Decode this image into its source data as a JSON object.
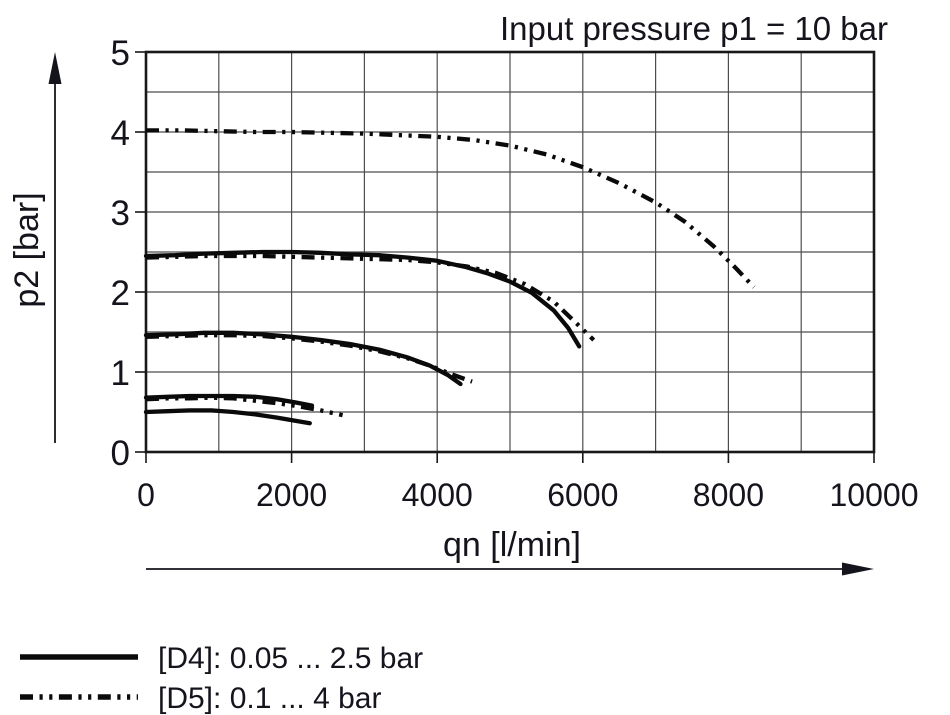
{
  "colors": {
    "background": "#ffffff",
    "ink": "#14141c",
    "curve": "#0a0a0a",
    "grid_line": "#4d4d4d",
    "frame": "#181818"
  },
  "chart_data": {
    "type": "line",
    "title": "Input pressure p1 = 10 bar",
    "xlabel": "qn [l/min]",
    "ylabel": "p2 [bar]",
    "xlim": [
      0,
      10000
    ],
    "ylim": [
      0,
      5
    ],
    "x_major_ticks": [
      0,
      2000,
      4000,
      6000,
      8000,
      10000
    ],
    "y_major_ticks": [
      0,
      1,
      2,
      3,
      4,
      5
    ],
    "x_grid_step": 1000,
    "y_grid_step": 0.5,
    "grid": true,
    "legend_position": "below-chart-left",
    "legend": [
      {
        "id": "d4",
        "label": "[D4]: 0.05 ... 2.5 bar",
        "style": "solid"
      },
      {
        "id": "d5",
        "label": "[D5]: 0.1 ... 4 bar",
        "style": "dash-dot-dot"
      }
    ],
    "series": [
      {
        "id": "d5-4.0-bar",
        "variant": "[D5]",
        "style": "dash-dot-dot",
        "set_pressure_bar": 4.0,
        "points": [
          [
            0,
            4.02
          ],
          [
            500,
            4.02
          ],
          [
            1000,
            4.01
          ],
          [
            1500,
            4.0
          ],
          [
            2000,
            4.0
          ],
          [
            2500,
            3.99
          ],
          [
            3000,
            3.98
          ],
          [
            3500,
            3.96
          ],
          [
            4000,
            3.94
          ],
          [
            4500,
            3.9
          ],
          [
            5000,
            3.83
          ],
          [
            5500,
            3.72
          ],
          [
            6000,
            3.56
          ],
          [
            6500,
            3.36
          ],
          [
            7000,
            3.12
          ],
          [
            7400,
            2.88
          ],
          [
            7800,
            2.57
          ],
          [
            8100,
            2.3
          ],
          [
            8350,
            2.06
          ]
        ]
      },
      {
        "id": "d4-2.5-bar",
        "variant": "[D4]",
        "style": "solid",
        "set_pressure_bar": 2.5,
        "points": [
          [
            0,
            2.45
          ],
          [
            400,
            2.46
          ],
          [
            800,
            2.48
          ],
          [
            1200,
            2.49
          ],
          [
            1600,
            2.5
          ],
          [
            2000,
            2.5
          ],
          [
            2400,
            2.49
          ],
          [
            2800,
            2.47
          ],
          [
            3200,
            2.46
          ],
          [
            3600,
            2.43
          ],
          [
            4000,
            2.39
          ],
          [
            4400,
            2.31
          ],
          [
            4700,
            2.23
          ],
          [
            5000,
            2.13
          ],
          [
            5300,
            1.99
          ],
          [
            5600,
            1.77
          ],
          [
            5800,
            1.55
          ],
          [
            5950,
            1.32
          ]
        ]
      },
      {
        "id": "d5-2.45-bar",
        "variant": "[D5]",
        "style": "dash-dot-dot",
        "set_pressure_bar": 2.45,
        "points": [
          [
            0,
            2.43
          ],
          [
            400,
            2.44
          ],
          [
            800,
            2.45
          ],
          [
            1200,
            2.45
          ],
          [
            1600,
            2.45
          ],
          [
            2000,
            2.44
          ],
          [
            2400,
            2.43
          ],
          [
            2800,
            2.42
          ],
          [
            3200,
            2.41
          ],
          [
            3600,
            2.4
          ],
          [
            4000,
            2.37
          ],
          [
            4400,
            2.32
          ],
          [
            4800,
            2.24
          ],
          [
            5200,
            2.1
          ],
          [
            5600,
            1.88
          ],
          [
            5900,
            1.62
          ],
          [
            6150,
            1.4
          ]
        ]
      },
      {
        "id": "d4-1.45-bar",
        "variant": "[D4]",
        "style": "solid",
        "set_pressure_bar": 1.45,
        "points": [
          [
            0,
            1.46
          ],
          [
            400,
            1.47
          ],
          [
            800,
            1.49
          ],
          [
            1200,
            1.49
          ],
          [
            1600,
            1.47
          ],
          [
            2000,
            1.44
          ],
          [
            2400,
            1.4
          ],
          [
            2800,
            1.35
          ],
          [
            3200,
            1.28
          ],
          [
            3600,
            1.18
          ],
          [
            3900,
            1.08
          ],
          [
            4150,
            0.96
          ],
          [
            4320,
            0.85
          ]
        ]
      },
      {
        "id": "d5-1.43-bar",
        "variant": "[D5]",
        "style": "dash-dot-dot",
        "set_pressure_bar": 1.43,
        "points": [
          [
            0,
            1.44
          ],
          [
            400,
            1.45
          ],
          [
            800,
            1.46
          ],
          [
            1200,
            1.46
          ],
          [
            1600,
            1.45
          ],
          [
            2000,
            1.42
          ],
          [
            2400,
            1.38
          ],
          [
            2800,
            1.33
          ],
          [
            3200,
            1.26
          ],
          [
            3600,
            1.17
          ],
          [
            3900,
            1.08
          ],
          [
            4200,
            0.97
          ],
          [
            4480,
            0.88
          ]
        ]
      },
      {
        "id": "d4-0.7-bar",
        "variant": "[D4]",
        "style": "solid",
        "set_pressure_bar": 0.7,
        "points": [
          [
            0,
            0.68
          ],
          [
            300,
            0.69
          ],
          [
            600,
            0.7
          ],
          [
            900,
            0.7
          ],
          [
            1200,
            0.7
          ],
          [
            1500,
            0.69
          ],
          [
            1800,
            0.66
          ],
          [
            2050,
            0.62
          ],
          [
            2280,
            0.58
          ]
        ]
      },
      {
        "id": "d5-0.65-bar",
        "variant": "[D5]",
        "style": "dash-dot-dot",
        "set_pressure_bar": 0.65,
        "points": [
          [
            0,
            0.66
          ],
          [
            300,
            0.67
          ],
          [
            600,
            0.67
          ],
          [
            900,
            0.68
          ],
          [
            1200,
            0.67
          ],
          [
            1500,
            0.64
          ],
          [
            1800,
            0.61
          ],
          [
            2100,
            0.57
          ],
          [
            2400,
            0.52
          ],
          [
            2700,
            0.46
          ]
        ]
      },
      {
        "id": "d4-0.5-bar",
        "variant": "[D4]",
        "style": "solid",
        "set_pressure_bar": 0.5,
        "points": [
          [
            0,
            0.5
          ],
          [
            300,
            0.51
          ],
          [
            600,
            0.52
          ],
          [
            900,
            0.52
          ],
          [
            1200,
            0.5
          ],
          [
            1500,
            0.47
          ],
          [
            1800,
            0.43
          ],
          [
            2050,
            0.39
          ],
          [
            2250,
            0.36
          ]
        ]
      }
    ]
  }
}
